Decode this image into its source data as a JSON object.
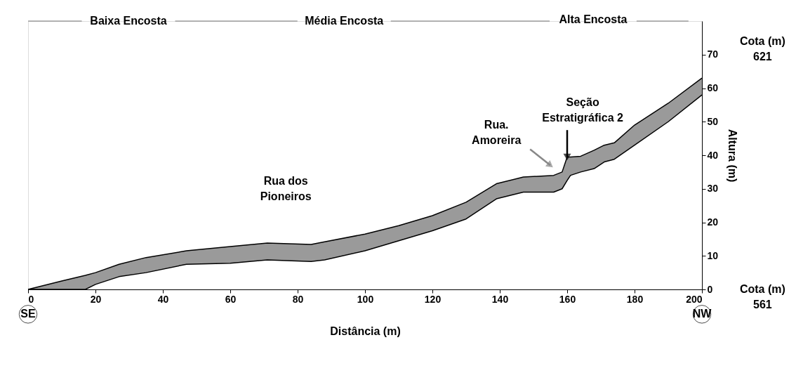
{
  "chart_data": {
    "type": "area",
    "xlabel": "Distância (m)",
    "ylabel": "Altura (m)",
    "x": [
      0,
      10,
      17,
      20,
      27,
      35,
      47,
      60,
      71,
      84,
      88,
      100,
      110,
      120,
      130,
      139,
      147,
      156,
      158.5,
      160,
      161,
      164,
      168,
      171,
      174,
      180,
      190,
      200
    ],
    "series": [
      {
        "color": "#9a9a9a",
        "values": [
          0,
          2.5,
          4.2,
          5,
          7.5,
          9.5,
          11.5,
          12.8,
          13.8,
          13.4,
          14.2,
          16.5,
          19,
          22,
          26,
          31.5,
          33.5,
          34,
          35,
          39.5,
          39.5,
          39.7,
          41.5,
          43,
          43.7,
          49,
          55.5,
          63
        ]
      },
      {
        "color": "#ffffff",
        "values": [
          0,
          0,
          0,
          1.5,
          3.8,
          5,
          7.5,
          7.8,
          8.8,
          8.3,
          8.8,
          11.5,
          14.5,
          17.5,
          21,
          27,
          29,
          29,
          30,
          32.5,
          34,
          35,
          36,
          38,
          38.8,
          43,
          50,
          58
        ]
      }
    ],
    "xlim": [
      0,
      200
    ],
    "ylim": [
      0,
      80
    ],
    "xticks": [
      0,
      20,
      40,
      60,
      80,
      100,
      120,
      140,
      160,
      180,
      200
    ],
    "yticks": [
      0,
      10,
      20,
      30,
      40,
      50,
      60,
      70
    ],
    "grid": false,
    "annotations": [
      "Baixa Encosta",
      "Média Encosta",
      "Alta Encosta",
      "Rua dos Pioneiros",
      "Rua. Amoreira",
      {
        "text": "Seção Estratigráfica 2",
        "x": 160,
        "y": 39.5
      },
      "Cota (m) 621",
      "Cota (m) 561",
      "SE",
      "NW"
    ]
  }
}
